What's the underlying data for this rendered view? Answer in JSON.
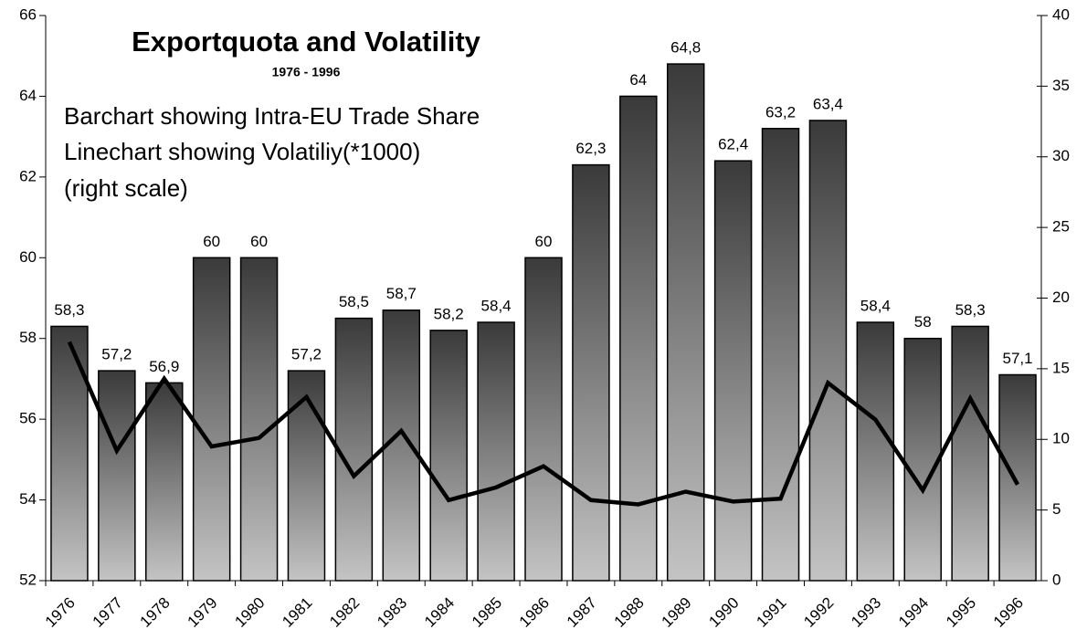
{
  "chart_data": {
    "type": "bar-line",
    "title": "Exportquota and Volatility",
    "subtitle": "1976 - 1996",
    "annotations": [
      "Barchart showing Intra-EU Trade Share",
      "Linechart showing Volatiliy(*1000)",
      "(right scale)"
    ],
    "categories": [
      "1976",
      "1977",
      "1978",
      "1979",
      "1980",
      "1981",
      "1982",
      "1983",
      "1984",
      "1985",
      "1986",
      "1987",
      "1988",
      "1989",
      "1990",
      "1991",
      "1992",
      "1993",
      "1994",
      "1995",
      "1996"
    ],
    "values": [
      58.3,
      57.2,
      56.9,
      60,
      60,
      57.2,
      58.5,
      58.7,
      58.2,
      58.4,
      60,
      62.3,
      64,
      64.8,
      62.4,
      63.2,
      63.4,
      58.4,
      58,
      58.3,
      57.1
    ],
    "value_labels": [
      "58,3",
      "57,2",
      "56,9",
      "60",
      "60",
      "57,2",
      "58,5",
      "58,7",
      "58,2",
      "58,4",
      "60",
      "62,3",
      "64",
      "64,8",
      "62,4",
      "63,2",
      "63,4",
      "58,4",
      "58",
      "58,3",
      "57,1"
    ],
    "bar_gradient": [
      "#3a3a3a",
      "#c4c4c4"
    ],
    "line": {
      "axis": "y2",
      "color": "#000000",
      "values": [
        16.9,
        9.2,
        14.3,
        9.5,
        10.1,
        13.0,
        7.4,
        10.6,
        5.7,
        6.6,
        8.1,
        5.7,
        5.4,
        6.3,
        5.6,
        5.8,
        14.0,
        11.4,
        6.4,
        12.9,
        6.8
      ]
    },
    "ylim": [
      52,
      66
    ],
    "yticks": [
      52,
      54,
      56,
      58,
      60,
      62,
      64,
      66
    ],
    "y2lim": [
      0,
      40
    ],
    "y2ticks": [
      0,
      5,
      10,
      15,
      20,
      25,
      30,
      35,
      40
    ]
  }
}
